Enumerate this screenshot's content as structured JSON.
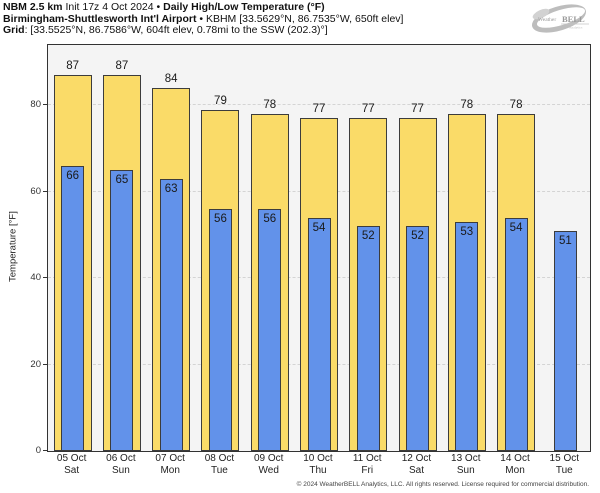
{
  "header": {
    "line1": {
      "model_bold": "NBM 2.5 km",
      "init": " Init 17z 4 Oct 2024 ",
      "bullet": "• ",
      "title_bold": "Daily High/Low Temperature (°F)"
    },
    "line2": {
      "station_bold": "Birmingham-Shuttlesworth Int'l Airport",
      "rest": " • KBHM [33.5629°N, 86.7535°W, 650ft elev]"
    },
    "line3": {
      "grid_bold": "Grid",
      "rest": ": [33.5525°N, 86.7586°W, 604ft elev, 0.78mi to the SSW (202.3)°]"
    }
  },
  "logo": {
    "brand_small": "Weather",
    "brand_big": "BELL",
    "sub": "Analytics"
  },
  "chart_data": {
    "type": "bar",
    "title": "NBM 2.5 km Daily High/Low Temperature (°F) — KBHM Birmingham-Shuttlesworth Int'l Airport",
    "categories": [
      "05 Oct",
      "06 Oct",
      "07 Oct",
      "08 Oct",
      "09 Oct",
      "10 Oct",
      "11 Oct",
      "12 Oct",
      "13 Oct",
      "14 Oct",
      "15 Oct"
    ],
    "category_days": [
      "Sat",
      "Sun",
      "Mon",
      "Tue",
      "Wed",
      "Thu",
      "Fri",
      "Sat",
      "Sun",
      "Mon",
      "Tue"
    ],
    "series": [
      {
        "name": "High",
        "color": "#fadb68",
        "values": [
          87,
          87,
          84,
          79,
          78,
          77,
          77,
          77,
          78,
          78,
          null
        ]
      },
      {
        "name": "Low",
        "color": "#6292ea",
        "values": [
          66,
          65,
          63,
          56,
          56,
          54,
          52,
          52,
          53,
          54,
          51
        ]
      }
    ],
    "xlabel": "",
    "ylabel": "Temperature [°F]",
    "ylim": [
      0,
      94
    ],
    "yticks": [
      0,
      20,
      40,
      60,
      80
    ],
    "grid": true,
    "legend_position": "none"
  },
  "footer": {
    "copyright": "© 2024 WeatherBELL Analytics, LLC. All rights reserved. License required for commercial distribution."
  },
  "colors": {
    "high_bar": "#fadb68",
    "low_bar": "#6292ea",
    "bar_border": "#3c3c3c",
    "plot_bg": "#f4f4f4",
    "gridline": "#d4d4d4",
    "frame": "#333333",
    "logo_gray": "#bdbdbd"
  }
}
